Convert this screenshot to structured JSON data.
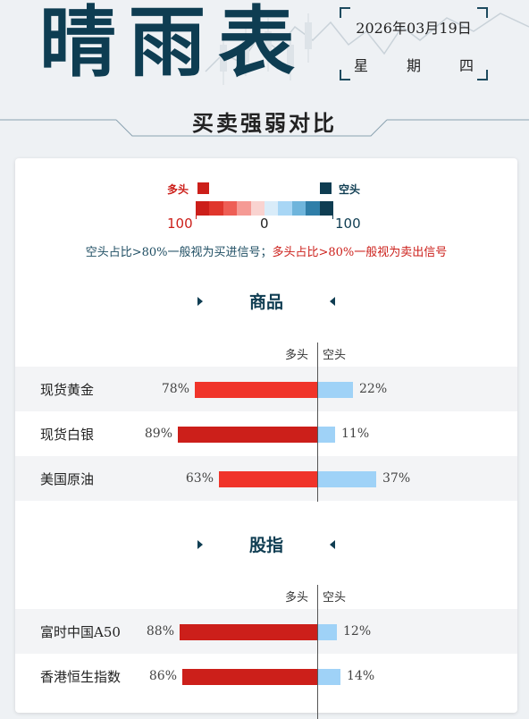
{
  "header": {
    "title": "晴雨表",
    "date": "2026年03月19日",
    "weekday": [
      "星",
      "期",
      "四"
    ]
  },
  "section_title": "买卖强弱对比",
  "legend": {
    "long_label": "多头",
    "short_label": "空头",
    "scale_left": "100",
    "scale_mid": "0",
    "scale_right": "100",
    "long_color": "#cc1f1a",
    "short_color": "#0f3d52",
    "gradient": [
      "#cc1f1a",
      "#e0362c",
      "#ee5e55",
      "#f59a94",
      "#f9d3d0",
      "#d9ecf9",
      "#a8d6f5",
      "#6fb5dc",
      "#2f7ea8",
      "#0f3d52"
    ],
    "hint_short": "空头占比>80%一般视为买进信号；",
    "hint_long": "多头占比>80%一般视为卖出信号"
  },
  "groups": [
    {
      "title": "商品",
      "col_long": "多头",
      "col_short": "空头",
      "rows": [
        {
          "name": "现货黄金",
          "long": 78,
          "short": 22,
          "long_text": "78%",
          "short_text": "22%"
        },
        {
          "name": "现货白银",
          "long": 89,
          "short": 11,
          "long_text": "89%",
          "short_text": "11%"
        },
        {
          "name": "美国原油",
          "long": 63,
          "short": 37,
          "long_text": "63%",
          "short_text": "37%"
        }
      ]
    },
    {
      "title": "股指",
      "col_long": "多头",
      "col_short": "空头",
      "rows": [
        {
          "name": "富时中国A50",
          "long": 88,
          "short": 12,
          "long_text": "88%",
          "short_text": "12%"
        },
        {
          "name": "香港恒生指数",
          "long": 86,
          "short": 14,
          "long_text": "86%",
          "short_text": "14%"
        }
      ]
    }
  ],
  "colors": {
    "bar_long_strong": "#cc1f1a",
    "bar_long_mid": "#f0342a",
    "bar_short": "#9fd2f7"
  }
}
